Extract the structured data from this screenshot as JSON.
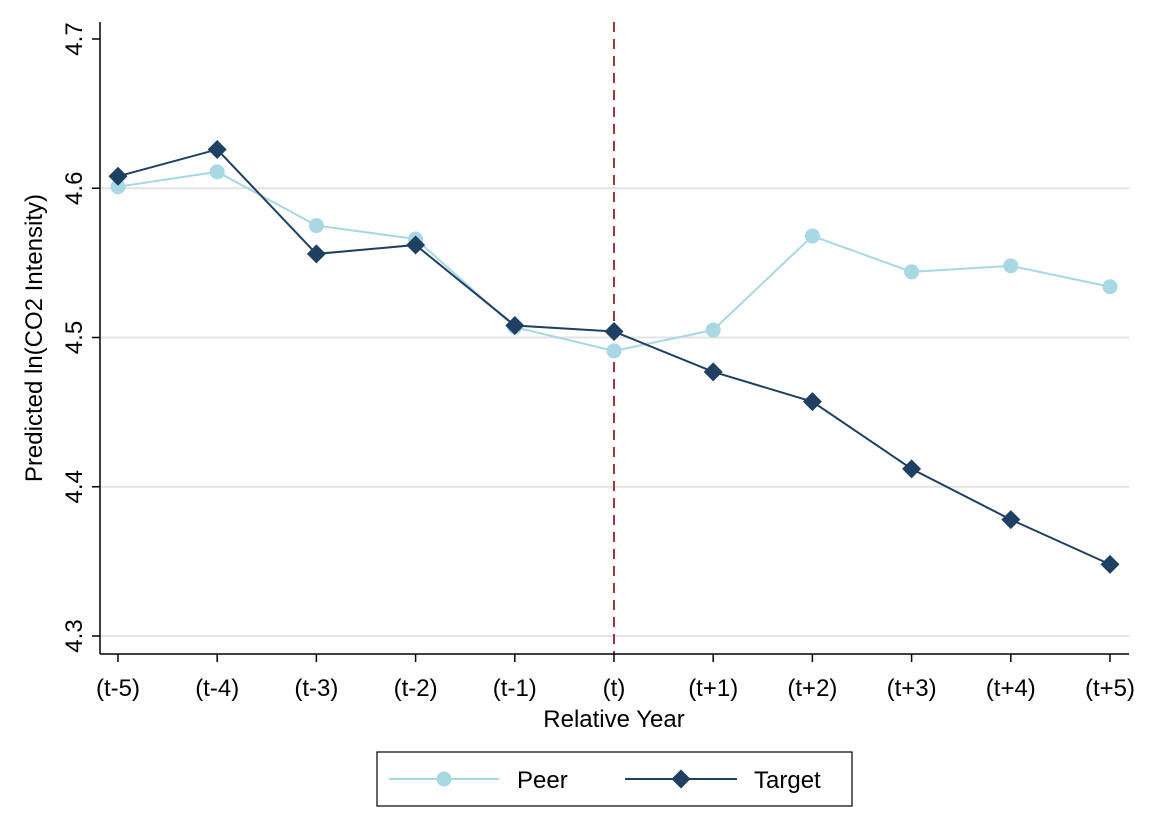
{
  "chart_data": {
    "type": "line",
    "categories": [
      "(t-5)",
      "(t-4)",
      "(t-3)",
      "(t-2)",
      "(t-1)",
      "(t)",
      "(t+1)",
      "(t+2)",
      "(t+3)",
      "(t+4)",
      "(t+5)"
    ],
    "series": [
      {
        "name": "Peer",
        "color": "#a8d8e3",
        "marker": "circle",
        "values": [
          4.601,
          4.611,
          4.575,
          4.566,
          4.507,
          4.491,
          4.505,
          4.568,
          4.544,
          4.548,
          4.534
        ]
      },
      {
        "name": "Target",
        "color": "#1f3f63",
        "marker": "diamond",
        "values": [
          4.608,
          4.626,
          4.556,
          4.562,
          4.508,
          4.504,
          4.477,
          4.457,
          4.412,
          4.378,
          4.348
        ]
      }
    ],
    "xlabel": "Relative Year",
    "ylabel": "Predicted ln(CO2 Intensity)",
    "ylim": [
      4.3,
      4.7
    ],
    "yticks": [
      "4.3",
      "4.4",
      "4.5",
      "4.6",
      "4.7"
    ],
    "grid": true,
    "reference_line": {
      "category": "(t)",
      "color": "#9b3a3a",
      "style": "dashed"
    },
    "legend_position": "bottom"
  }
}
